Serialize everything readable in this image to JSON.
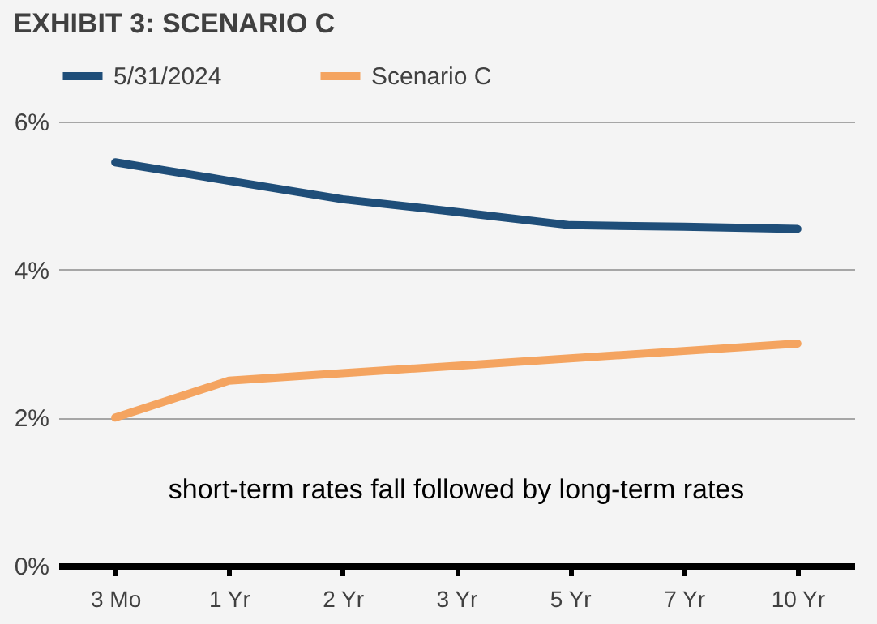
{
  "chart_data": {
    "type": "line",
    "title": "EXHIBIT 3: SCENARIO C",
    "categories": [
      "3 Mo",
      "1 Yr",
      "2 Yr",
      "3 Yr",
      "5 Yr",
      "7 Yr",
      "10 Yr"
    ],
    "series": [
      {
        "name": "5/31/2024",
        "color": "#1f4e79",
        "values": [
          5.45,
          5.2,
          4.95,
          4.78,
          4.6,
          4.58,
          4.55
        ]
      },
      {
        "name": "Scenario C",
        "color": "#f4a460",
        "values": [
          2.0,
          2.5,
          2.6,
          2.7,
          2.8,
          2.9,
          3.0
        ]
      }
    ],
    "ylim": [
      0,
      6
    ],
    "yticks": [
      {
        "value": 0,
        "label": "0%"
      },
      {
        "value": 2,
        "label": "2%"
      },
      {
        "value": 4,
        "label": "4%"
      },
      {
        "value": 6,
        "label": "6%"
      }
    ],
    "grid": "y",
    "legend": "top",
    "marker": "none",
    "line_style": "solid",
    "annotations": [
      "short-term rates fall followed by long-term rates"
    ]
  }
}
